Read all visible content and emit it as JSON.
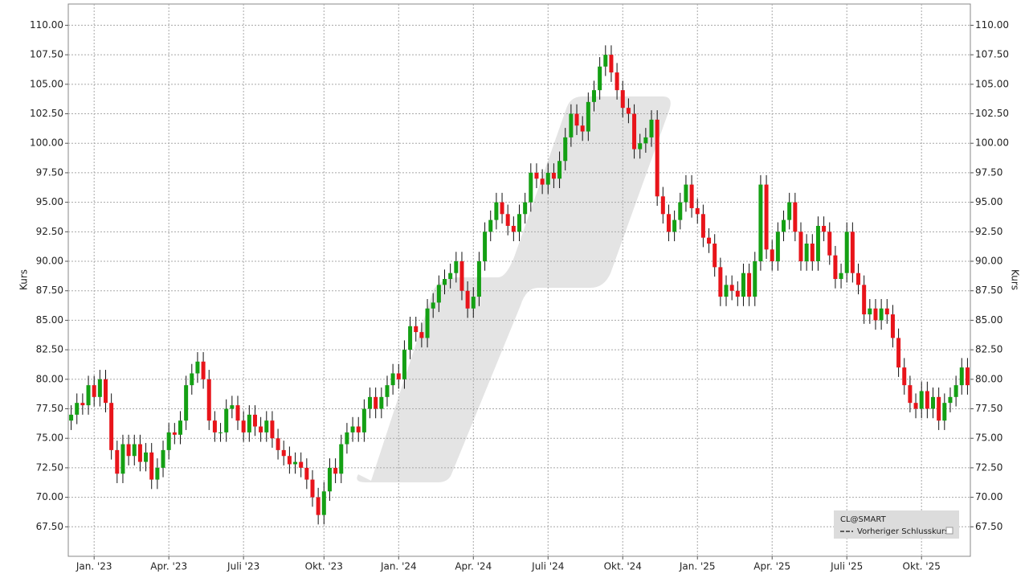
{
  "chart_data": {
    "type": "candlestick",
    "y_label": "Kurs",
    "symbol": "CL@SMART",
    "legend_entry": "Vorheriger Schlusskurs",
    "up_color": "#14a014",
    "down_color": "#e8141a",
    "grid": true,
    "legend_position": "lower right",
    "ylim": [
      65,
      111.8
    ],
    "yticks": [
      {
        "value": 67.5,
        "label": "67.50"
      },
      {
        "value": 70,
        "label": "70.00"
      },
      {
        "value": 72.5,
        "label": "72.50"
      },
      {
        "value": 75,
        "label": "75.00"
      },
      {
        "value": 77.5,
        "label": "77.50"
      },
      {
        "value": 80,
        "label": "80.00"
      },
      {
        "value": 82.5,
        "label": "82.50"
      },
      {
        "value": 85,
        "label": "85.00"
      },
      {
        "value": 87.5,
        "label": "87.50"
      },
      {
        "value": 90,
        "label": "90.00"
      },
      {
        "value": 92.5,
        "label": "92.50"
      },
      {
        "value": 95,
        "label": "95.00"
      },
      {
        "value": 97.5,
        "label": "97.50"
      },
      {
        "value": 100,
        "label": "100.00"
      },
      {
        "value": 102.5,
        "label": "102.50"
      },
      {
        "value": 105,
        "label": "105.00"
      },
      {
        "value": 107.5,
        "label": "107.50"
      },
      {
        "value": 110,
        "label": "110.00"
      }
    ],
    "categories": [
      null,
      null,
      null,
      null,
      "Jan. '23",
      null,
      null,
      null,
      null,
      null,
      null,
      null,
      null,
      null,
      null,
      null,
      null,
      "Apr. '23",
      null,
      null,
      null,
      null,
      null,
      null,
      null,
      null,
      null,
      null,
      null,
      null,
      "Juli '23",
      null,
      null,
      null,
      null,
      null,
      null,
      null,
      null,
      null,
      null,
      null,
      null,
      null,
      "Okt. '23",
      null,
      null,
      null,
      null,
      null,
      null,
      null,
      null,
      null,
      null,
      null,
      null,
      "Jan. '24",
      null,
      null,
      null,
      null,
      null,
      null,
      null,
      null,
      null,
      null,
      null,
      null,
      "Apr. '24",
      null,
      null,
      null,
      null,
      null,
      null,
      null,
      null,
      null,
      null,
      null,
      null,
      "Juli '24",
      null,
      null,
      null,
      null,
      null,
      null,
      null,
      null,
      null,
      null,
      null,
      null,
      "Okt. '24",
      null,
      null,
      null,
      null,
      null,
      null,
      null,
      null,
      null,
      null,
      null,
      null,
      "Jan. '25",
      null,
      null,
      null,
      null,
      null,
      null,
      null,
      null,
      null,
      null,
      null,
      null,
      "Apr. '25",
      null,
      null,
      null,
      null,
      null,
      null,
      null,
      null,
      null,
      null,
      null,
      null,
      "Juli '25",
      null,
      null,
      null,
      null,
      null,
      null,
      null,
      null,
      null,
      null,
      null,
      null,
      "Okt. '25",
      null,
      null,
      null,
      null,
      null,
      null,
      null,
      null
    ],
    "open": [
      76.5,
      77,
      78,
      77.8,
      79.5,
      78.5,
      80,
      78,
      74,
      72,
      74.5,
      73.5,
      74.5,
      73,
      73.8,
      71.5,
      72.5,
      74,
      75.5,
      75.3,
      76.5,
      79.5,
      80.5,
      81.5,
      80,
      76.5,
      75.5,
      75.5,
      77.5,
      77.8,
      76.5,
      75.5,
      77,
      76,
      75.5,
      76.5,
      75,
      74,
      73.5,
      72.8,
      73,
      72.5,
      71.5,
      70,
      68.5,
      70.5,
      72.5,
      72,
      74.5,
      75.5,
      76,
      75.5,
      77.5,
      78.5,
      77.5,
      78.5,
      79.5,
      80.5,
      80,
      82.5,
      84.5,
      84,
      83.5,
      86,
      86.5,
      88,
      88.5,
      89,
      90,
      87.5,
      86,
      87,
      90,
      92.5,
      93.5,
      95,
      94,
      93,
      92.5,
      94,
      95,
      97.5,
      97,
      96.5,
      97.5,
      97,
      98.5,
      100.5,
      102.5,
      101.5,
      101,
      103.5,
      104.5,
      106.5,
      107.5,
      106,
      104.5,
      103,
      102.5,
      99.5,
      100,
      100.5,
      102,
      95.5,
      94,
      92.5,
      93.5,
      95,
      96.5,
      94.5,
      94,
      92,
      91.5,
      89.5,
      87,
      88,
      87.5,
      87,
      89,
      87,
      90,
      96.5,
      91,
      90,
      92.5,
      93.5,
      95,
      92.5,
      90,
      91.5,
      90,
      93,
      92.5,
      90.5,
      88.5,
      89,
      92.5,
      89,
      88,
      85.5,
      86,
      85,
      86,
      85.5,
      83.5,
      81,
      79.5,
      78,
      77.5,
      79,
      77.5,
      78.5,
      76.5,
      78,
      78.5,
      79.5,
      81
    ],
    "high": [
      77.8,
      78.8,
      78.8,
      80.3,
      80.3,
      80.8,
      80.8,
      78.8,
      74.8,
      75.3,
      75.3,
      75.3,
      75.3,
      74.6,
      74.6,
      73.3,
      74.8,
      76.3,
      76.3,
      77.3,
      80.3,
      81.3,
      82.3,
      82.3,
      80.8,
      77.3,
      76.3,
      78.3,
      78.6,
      78.6,
      77.3,
      77.8,
      77.8,
      76.8,
      77.3,
      77.3,
      75.8,
      74.8,
      74.3,
      73.8,
      73.8,
      73.3,
      72.3,
      70.8,
      71.3,
      73.3,
      73.3,
      75.3,
      76.3,
      76.8,
      76.8,
      78.3,
      79.3,
      79.3,
      79.3,
      80.3,
      81.3,
      81.3,
      83.3,
      85.3,
      85.3,
      84.8,
      86.8,
      87.3,
      88.8,
      89.3,
      89.8,
      90.8,
      90.8,
      88.3,
      87.8,
      90.8,
      93.3,
      94.3,
      95.8,
      95.8,
      94.8,
      93.8,
      94.8,
      95.8,
      98.3,
      98.3,
      97.8,
      98.3,
      98.3,
      99.3,
      101.3,
      103.3,
      103.3,
      102.3,
      104.3,
      105.3,
      107.3,
      108.3,
      108.3,
      106.8,
      105.3,
      103.8,
      103.3,
      100.8,
      101.3,
      102.8,
      102.8,
      96.3,
      94.8,
      94.3,
      95.8,
      97.3,
      97.3,
      95.3,
      94.8,
      92.8,
      92.3,
      90.3,
      88.8,
      88.8,
      88.3,
      89.8,
      89.8,
      90.8,
      97.3,
      97.3,
      91.8,
      93.3,
      94.3,
      95.8,
      95.8,
      93.3,
      92.3,
      92.3,
      93.8,
      93.8,
      93.3,
      91.3,
      89.8,
      93.3,
      93.3,
      89.8,
      88.8,
      86.8,
      86.8,
      86.8,
      86.8,
      86.3,
      84.3,
      81.8,
      80.3,
      78.8,
      79.8,
      79.8,
      79.3,
      79.3,
      78.8,
      79.3,
      80.3,
      81.8,
      81.8
    ],
    "low": [
      75.7,
      76.2,
      77,
      77,
      77.7,
      77.7,
      77.2,
      73.2,
      71.2,
      71.2,
      72.7,
      72.7,
      72.2,
      72.2,
      70.7,
      70.7,
      71.7,
      73.2,
      74.5,
      74.5,
      75.7,
      78.7,
      79.7,
      79.2,
      75.7,
      74.7,
      74.7,
      74.7,
      76.7,
      75.7,
      74.7,
      74.7,
      75.2,
      74.7,
      74.7,
      74.2,
      73.2,
      72.7,
      72,
      72,
      71.7,
      70.7,
      69.2,
      67.7,
      67.7,
      69.7,
      71.2,
      71.2,
      73.7,
      74.7,
      74.7,
      74.7,
      76.7,
      76.7,
      76.7,
      77.7,
      78.7,
      79.2,
      79.2,
      81.7,
      83.2,
      82.7,
      82.7,
      85.2,
      85.7,
      87.2,
      87.7,
      88.2,
      86.7,
      85.2,
      85.2,
      86.2,
      89.2,
      91.7,
      92.7,
      93.2,
      92.2,
      91.7,
      91.7,
      93.2,
      94.2,
      96.2,
      95.7,
      95.7,
      96.2,
      96.2,
      97.7,
      99.7,
      100.7,
      100.2,
      100.2,
      102.7,
      103.7,
      105.7,
      105.2,
      103.7,
      102.2,
      101.7,
      98.7,
      98.7,
      99.2,
      99.7,
      94.7,
      93.2,
      91.7,
      91.7,
      92.7,
      94.2,
      93.7,
      93.2,
      91.2,
      90.7,
      88.7,
      86.2,
      86.2,
      86.7,
      86.2,
      86.2,
      86.2,
      86.2,
      89.2,
      90.2,
      89.2,
      89.2,
      91.7,
      92.7,
      91.7,
      89.2,
      89.2,
      89.2,
      89.2,
      91.7,
      89.7,
      87.7,
      87.7,
      88.2,
      88.2,
      87.2,
      84.7,
      84.7,
      84.2,
      84.2,
      84.7,
      82.7,
      80.2,
      78.7,
      77.2,
      76.7,
      76.7,
      76.7,
      76.7,
      75.7,
      75.7,
      77.2,
      77.7,
      78.7,
      78.7
    ],
    "close": [
      77,
      78,
      77.8,
      79.5,
      78.5,
      80,
      78,
      74,
      72,
      74.5,
      73.5,
      74.5,
      73,
      73.8,
      71.5,
      72.5,
      74,
      75.5,
      75.3,
      76.5,
      79.5,
      80.5,
      81.5,
      80,
      76.5,
      75.5,
      75.5,
      77.5,
      77.8,
      76.5,
      75.5,
      77,
      76,
      75.5,
      76.5,
      75,
      74,
      73.5,
      72.8,
      73,
      72.5,
      71.5,
      70,
      68.5,
      70.5,
      72.5,
      72,
      74.5,
      75.5,
      76,
      75.5,
      77.5,
      78.5,
      77.5,
      78.5,
      79.5,
      80.5,
      80,
      82.5,
      84.5,
      84,
      83.5,
      86,
      86.5,
      88,
      88.5,
      89,
      90,
      87.5,
      86,
      87,
      90,
      92.5,
      93.5,
      95,
      94,
      93,
      92.5,
      94,
      95,
      97.5,
      97,
      96.5,
      97.5,
      97,
      98.5,
      100.5,
      102.5,
      101.5,
      101,
      103.5,
      104.5,
      106.5,
      107.5,
      106,
      104.5,
      103,
      102.5,
      99.5,
      100,
      100.5,
      102,
      95.5,
      94,
      92.5,
      93.5,
      95,
      96.5,
      94.5,
      94,
      92,
      91.5,
      89.5,
      87,
      88,
      87.5,
      87,
      89,
      87,
      90,
      96.5,
      91,
      90,
      92.5,
      93.5,
      95,
      92.5,
      90,
      91.5,
      90,
      93,
      92.5,
      90.5,
      88.5,
      89,
      92.5,
      89,
      88,
      85.5,
      86,
      85,
      86,
      85.5,
      83.5,
      81,
      79.5,
      78,
      77.5,
      79,
      77.5,
      78.5,
      76.5,
      78,
      78.5,
      79.5,
      81,
      79.5
    ]
  }
}
